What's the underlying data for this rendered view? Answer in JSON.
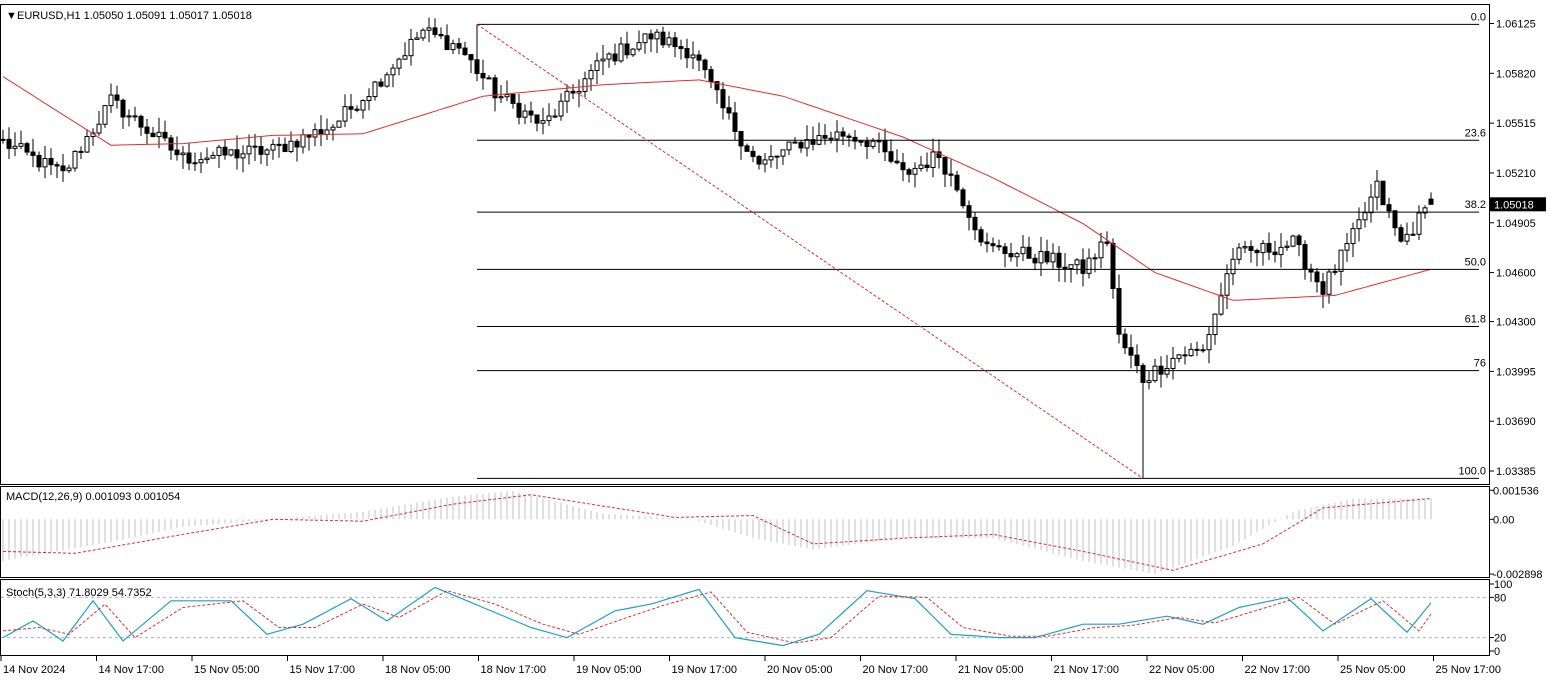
{
  "main": {
    "symbol_caret": "▼",
    "header": "EURUSD,H1  1.05050 1.05091 1.05017 1.05018",
    "current_price": "1.05018",
    "price_ticks": [
      "1.06125",
      "1.05820",
      "1.05515",
      "1.05210",
      "1.04905",
      "1.04600",
      "1.04300",
      "1.03995",
      "1.03690",
      "1.03385"
    ],
    "fib_levels": [
      {
        "label": "0.0",
        "price": 1.0612
      },
      {
        "label": "23.6",
        "price": 1.0541
      },
      {
        "label": "38.2",
        "price": 1.0497
      },
      {
        "label": "50.0",
        "price": 1.0462
      },
      {
        "label": "61.8",
        "price": 1.0427
      },
      {
        "label": "76",
        "price": 1.04
      },
      {
        "label": "100.0",
        "price": 1.0334
      }
    ],
    "colors": {
      "ma": "#e03030",
      "fib": "#000000",
      "trend": "#e03030",
      "bull": "#ffffff",
      "bear": "#000000"
    }
  },
  "macd": {
    "header": "MACD(12,26,9) 0.001093 0.001054",
    "ticks": [
      "0.001536",
      "0.00",
      "-0.002898"
    ],
    "colors": {
      "hist": "#c0c0c0",
      "signal": "#e03030"
    }
  },
  "stoch": {
    "header": "Stoch(5,3,3) 71.8029 54.7352",
    "ticks": [
      "100",
      "80",
      "20",
      "0"
    ],
    "colors": {
      "main": "#1fa0c8",
      "signal": "#e03030"
    }
  },
  "time_axis": [
    "14 Nov 2024",
    "14 Nov 17:00",
    "15 Nov 05:00",
    "15 Nov 17:00",
    "18 Nov 05:00",
    "18 Nov 17:00",
    "19 Nov 05:00",
    "19 Nov 17:00",
    "20 Nov 05:00",
    "20 Nov 17:00",
    "21 Nov 05:00",
    "21 Nov 17:00",
    "22 Nov 05:00",
    "22 Nov 17:00",
    "25 Nov 05:00",
    "25 Nov 17:00"
  ],
  "chart_data": [
    {
      "type": "candlestick",
      "symbol": "EURUSD",
      "timeframe": "H1",
      "ohlc_last": {
        "open": 1.0505,
        "high": 1.05091,
        "low": 1.05017,
        "close": 1.05018
      },
      "ylim": [
        1.0333,
        1.0622
      ],
      "keypoints": [
        {
          "i": 0,
          "c": 1.054
        },
        {
          "i": 10,
          "c": 1.052
        },
        {
          "i": 18,
          "c": 1.0565
        },
        {
          "i": 30,
          "c": 1.053
        },
        {
          "i": 45,
          "c": 1.0535
        },
        {
          "i": 55,
          "c": 1.055
        },
        {
          "i": 62,
          "c": 1.0575
        },
        {
          "i": 70,
          "c": 1.0608
        },
        {
          "i": 76,
          "c": 1.0598
        },
        {
          "i": 82,
          "c": 1.057
        },
        {
          "i": 90,
          "c": 1.055
        },
        {
          "i": 100,
          "c": 1.059
        },
        {
          "i": 108,
          "c": 1.0605
        },
        {
          "i": 115,
          "c": 1.0595
        },
        {
          "i": 120,
          "c": 1.056
        },
        {
          "i": 126,
          "c": 1.0525
        },
        {
          "i": 133,
          "c": 1.054
        },
        {
          "i": 140,
          "c": 1.0545
        },
        {
          "i": 145,
          "c": 1.054
        },
        {
          "i": 150,
          "c": 1.052
        },
        {
          "i": 156,
          "c": 1.0532
        },
        {
          "i": 160,
          "c": 1.0505
        },
        {
          "i": 164,
          "c": 1.0475
        },
        {
          "i": 172,
          "c": 1.047
        },
        {
          "i": 180,
          "c": 1.0462
        },
        {
          "i": 184,
          "c": 1.048
        },
        {
          "i": 186,
          "c": 1.042
        },
        {
          "i": 190,
          "c": 1.0395
        },
        {
          "i": 196,
          "c": 1.041
        },
        {
          "i": 200,
          "c": 1.0412
        },
        {
          "i": 205,
          "c": 1.047
        },
        {
          "i": 215,
          "c": 1.0478
        },
        {
          "i": 220,
          "c": 1.045
        },
        {
          "i": 225,
          "c": 1.0482
        },
        {
          "i": 229,
          "c": 1.0512
        },
        {
          "i": 233,
          "c": 1.0478
        },
        {
          "i": 238,
          "c": 1.0502
        }
      ],
      "moving_average": [
        {
          "i": 0,
          "v": 1.058
        },
        {
          "i": 18,
          "v": 1.0538
        },
        {
          "i": 30,
          "v": 1.0539
        },
        {
          "i": 45,
          "v": 1.0544
        },
        {
          "i": 60,
          "v": 1.0545
        },
        {
          "i": 80,
          "v": 1.0568
        },
        {
          "i": 100,
          "v": 1.0575
        },
        {
          "i": 116,
          "v": 1.0578
        },
        {
          "i": 130,
          "v": 1.0568
        },
        {
          "i": 150,
          "v": 1.0543
        },
        {
          "i": 165,
          "v": 1.0518
        },
        {
          "i": 180,
          "v": 1.049
        },
        {
          "i": 192,
          "v": 1.046
        },
        {
          "i": 205,
          "v": 1.0443
        },
        {
          "i": 222,
          "v": 1.0446
        },
        {
          "i": 238,
          "v": 1.0462
        }
      ],
      "trendline": [
        {
          "i": 79,
          "v": 1.0612
        },
        {
          "i": 190,
          "v": 1.0334
        }
      ],
      "fib_start_index": 79
    },
    {
      "type": "macd",
      "params": "12,26,9",
      "values": {
        "macd": 0.001093,
        "signal": 0.001054
      },
      "ylim": [
        -0.003,
        0.00155
      ],
      "hist_keypoints": [
        {
          "i": 0,
          "v": -0.0022
        },
        {
          "i": 18,
          "v": -0.0012
        },
        {
          "i": 30,
          "v": -0.0004
        },
        {
          "i": 45,
          "v": 0.0
        },
        {
          "i": 60,
          "v": 0.0004
        },
        {
          "i": 75,
          "v": 0.0012
        },
        {
          "i": 85,
          "v": 0.0015
        },
        {
          "i": 100,
          "v": 0.0003
        },
        {
          "i": 115,
          "v": 0.0
        },
        {
          "i": 125,
          "v": -0.001
        },
        {
          "i": 135,
          "v": -0.0016
        },
        {
          "i": 150,
          "v": -0.001
        },
        {
          "i": 165,
          "v": -0.001
        },
        {
          "i": 180,
          "v": -0.0022
        },
        {
          "i": 192,
          "v": -0.0029
        },
        {
          "i": 205,
          "v": -0.0014
        },
        {
          "i": 215,
          "v": 0.0004
        },
        {
          "i": 225,
          "v": 0.0011
        },
        {
          "i": 238,
          "v": 0.0011
        }
      ],
      "signal_keypoints": [
        {
          "i": 0,
          "v": -0.0017
        },
        {
          "i": 12,
          "v": -0.0018
        },
        {
          "i": 30,
          "v": -0.0008
        },
        {
          "i": 45,
          "v": 0.0
        },
        {
          "i": 60,
          "v": -0.0001
        },
        {
          "i": 75,
          "v": 0.0008
        },
        {
          "i": 88,
          "v": 0.0013
        },
        {
          "i": 100,
          "v": 0.0007
        },
        {
          "i": 112,
          "v": 0.0001
        },
        {
          "i": 125,
          "v": 0.0002
        },
        {
          "i": 135,
          "v": -0.0013
        },
        {
          "i": 150,
          "v": -0.001
        },
        {
          "i": 165,
          "v": -0.0008
        },
        {
          "i": 180,
          "v": -0.0017
        },
        {
          "i": 195,
          "v": -0.0027
        },
        {
          "i": 210,
          "v": -0.0013
        },
        {
          "i": 220,
          "v": 0.0006
        },
        {
          "i": 238,
          "v": 0.0011
        }
      ]
    },
    {
      "type": "stochastic",
      "params": "5,3,3",
      "values": {
        "main": 71.8029,
        "signal": 54.7352
      },
      "ylim": [
        0,
        100
      ],
      "levels": [
        80,
        20
      ],
      "main_keypoints": [
        {
          "i": 0,
          "v": 20
        },
        {
          "i": 5,
          "v": 45
        },
        {
          "i": 10,
          "v": 15
        },
        {
          "i": 15,
          "v": 75
        },
        {
          "i": 20,
          "v": 15
        },
        {
          "i": 28,
          "v": 75
        },
        {
          "i": 38,
          "v": 75
        },
        {
          "i": 44,
          "v": 25
        },
        {
          "i": 50,
          "v": 40
        },
        {
          "i": 58,
          "v": 78
        },
        {
          "i": 64,
          "v": 45
        },
        {
          "i": 72,
          "v": 95
        },
        {
          "i": 80,
          "v": 65
        },
        {
          "i": 88,
          "v": 35
        },
        {
          "i": 94,
          "v": 20
        },
        {
          "i": 102,
          "v": 60
        },
        {
          "i": 108,
          "v": 70
        },
        {
          "i": 116,
          "v": 92
        },
        {
          "i": 122,
          "v": 20
        },
        {
          "i": 130,
          "v": 8
        },
        {
          "i": 136,
          "v": 25
        },
        {
          "i": 144,
          "v": 90
        },
        {
          "i": 152,
          "v": 78
        },
        {
          "i": 158,
          "v": 25
        },
        {
          "i": 166,
          "v": 20
        },
        {
          "i": 172,
          "v": 20
        },
        {
          "i": 180,
          "v": 40
        },
        {
          "i": 186,
          "v": 40
        },
        {
          "i": 194,
          "v": 52
        },
        {
          "i": 200,
          "v": 40
        },
        {
          "i": 206,
          "v": 65
        },
        {
          "i": 214,
          "v": 80
        },
        {
          "i": 220,
          "v": 30
        },
        {
          "i": 228,
          "v": 78
        },
        {
          "i": 234,
          "v": 28
        },
        {
          "i": 238,
          "v": 72
        }
      ],
      "signal_keypoints": [
        {
          "i": 0,
          "v": 30
        },
        {
          "i": 6,
          "v": 35
        },
        {
          "i": 11,
          "v": 25
        },
        {
          "i": 17,
          "v": 70
        },
        {
          "i": 22,
          "v": 20
        },
        {
          "i": 30,
          "v": 65
        },
        {
          "i": 40,
          "v": 75
        },
        {
          "i": 46,
          "v": 35
        },
        {
          "i": 52,
          "v": 35
        },
        {
          "i": 60,
          "v": 70
        },
        {
          "i": 66,
          "v": 50
        },
        {
          "i": 74,
          "v": 90
        },
        {
          "i": 82,
          "v": 70
        },
        {
          "i": 90,
          "v": 40
        },
        {
          "i": 96,
          "v": 25
        },
        {
          "i": 104,
          "v": 50
        },
        {
          "i": 110,
          "v": 68
        },
        {
          "i": 118,
          "v": 88
        },
        {
          "i": 124,
          "v": 28
        },
        {
          "i": 132,
          "v": 12
        },
        {
          "i": 138,
          "v": 20
        },
        {
          "i": 146,
          "v": 82
        },
        {
          "i": 154,
          "v": 80
        },
        {
          "i": 160,
          "v": 35
        },
        {
          "i": 168,
          "v": 22
        },
        {
          "i": 174,
          "v": 22
        },
        {
          "i": 182,
          "v": 35
        },
        {
          "i": 188,
          "v": 38
        },
        {
          "i": 196,
          "v": 50
        },
        {
          "i": 202,
          "v": 42
        },
        {
          "i": 208,
          "v": 58
        },
        {
          "i": 216,
          "v": 80
        },
        {
          "i": 222,
          "v": 40
        },
        {
          "i": 230,
          "v": 75
        },
        {
          "i": 236,
          "v": 30
        },
        {
          "i": 238,
          "v": 55
        }
      ]
    }
  ]
}
